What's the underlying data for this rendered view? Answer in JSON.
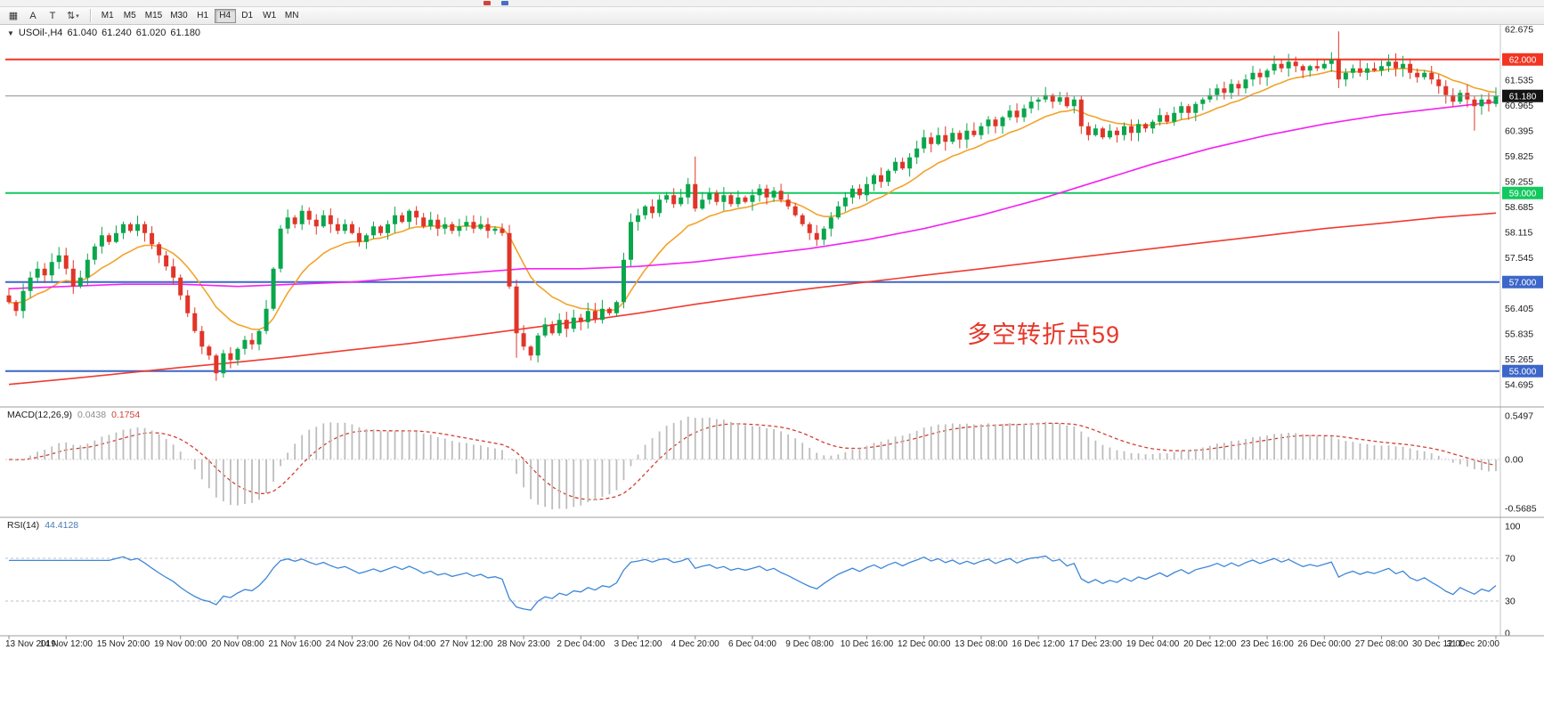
{
  "toolbar": {
    "icons": [
      {
        "name": "market-grid-icon",
        "glyph": "▦"
      },
      {
        "name": "cursor-a-icon",
        "glyph": "A"
      },
      {
        "name": "text-tool-icon",
        "glyph": "T"
      },
      {
        "name": "sort-arrows-icon",
        "glyph": "⇅",
        "caret": "▾"
      }
    ],
    "timeframes": [
      {
        "label": "M1",
        "active": false
      },
      {
        "label": "M5",
        "active": false
      },
      {
        "label": "M15",
        "active": false
      },
      {
        "label": "M30",
        "active": false
      },
      {
        "label": "H1",
        "active": false
      },
      {
        "label": "H4",
        "active": true
      },
      {
        "label": "D1",
        "active": false
      },
      {
        "label": "W1",
        "active": false
      },
      {
        "label": "MN",
        "active": false
      }
    ]
  },
  "chart_header": {
    "dropdown_glyph": "▼",
    "symbol": "USOil-,H4",
    "open": "61.040",
    "high": "61.240",
    "low": "61.020",
    "close": "61.180"
  },
  "annotation": {
    "text": "多空转折点59",
    "color": "#e8372a"
  },
  "indicator_labels": {
    "macd_name": "MACD(12,26,9)",
    "macd_main": "0.0438",
    "macd_signal": "0.1754",
    "rsi_name": "RSI(14)",
    "rsi_value": "44.4128"
  },
  "chart_data": [
    {
      "type": "candlestick",
      "symbol": "USOil",
      "timeframe": "H4",
      "up_color": "#0aa64c",
      "down_color": "#e03528",
      "first_open": 56.7,
      "closes": [
        56.55,
        56.35,
        56.8,
        57.1,
        57.3,
        57.15,
        57.45,
        57.6,
        57.3,
        56.9,
        57.1,
        57.5,
        57.8,
        58.05,
        57.9,
        58.1,
        58.3,
        58.15,
        58.3,
        58.1,
        57.85,
        57.6,
        57.35,
        57.1,
        56.7,
        56.3,
        55.9,
        55.55,
        55.35,
        54.95,
        55.4,
        55.25,
        55.5,
        55.7,
        55.6,
        55.9,
        56.4,
        57.3,
        58.2,
        58.45,
        58.3,
        58.6,
        58.4,
        58.25,
        58.5,
        58.3,
        58.15,
        58.3,
        58.1,
        57.9,
        58.05,
        58.25,
        58.1,
        58.3,
        58.5,
        58.35,
        58.6,
        58.45,
        58.25,
        58.4,
        58.2,
        58.3,
        58.15,
        58.25,
        58.35,
        58.2,
        58.3,
        58.15,
        58.2,
        58.1,
        56.9,
        55.85,
        55.55,
        55.35,
        55.8,
        56.05,
        55.85,
        56.15,
        55.95,
        56.2,
        56.1,
        56.35,
        56.15,
        56.4,
        56.3,
        56.55,
        57.5,
        58.35,
        58.5,
        58.7,
        58.55,
        58.85,
        58.95,
        58.75,
        58.9,
        59.2,
        58.65,
        58.85,
        59.0,
        58.8,
        58.95,
        58.75,
        58.9,
        58.8,
        58.95,
        59.1,
        58.9,
        59.05,
        58.85,
        58.7,
        58.5,
        58.3,
        58.1,
        57.95,
        58.2,
        58.45,
        58.7,
        58.9,
        59.1,
        58.95,
        59.2,
        59.4,
        59.25,
        59.5,
        59.7,
        59.55,
        59.8,
        60.0,
        60.25,
        60.1,
        60.3,
        60.15,
        60.35,
        60.2,
        60.4,
        60.3,
        60.5,
        60.65,
        60.5,
        60.7,
        60.85,
        60.7,
        60.9,
        61.05,
        61.1,
        61.2,
        61.05,
        61.15,
        60.95,
        61.1,
        60.5,
        60.3,
        60.45,
        60.25,
        60.4,
        60.3,
        60.5,
        60.35,
        60.55,
        60.45,
        60.6,
        60.75,
        60.6,
        60.8,
        60.95,
        60.8,
        61.0,
        61.1,
        61.2,
        61.35,
        61.25,
        61.45,
        61.35,
        61.55,
        61.7,
        61.6,
        61.75,
        61.9,
        61.8,
        61.95,
        61.85,
        61.75,
        61.85,
        61.8,
        61.9,
        62.0,
        61.55,
        61.7,
        61.8,
        61.7,
        61.8,
        61.75,
        61.85,
        61.95,
        61.8,
        61.9,
        61.7,
        61.6,
        61.7,
        61.55,
        61.4,
        61.2,
        61.05,
        61.25,
        61.1,
        60.95,
        61.1,
        61.0,
        61.18
      ],
      "wick_overrides": {
        "29": {
          "low": 54.78
        },
        "71": {
          "low": 55.3
        },
        "96": {
          "high": 59.82
        },
        "186": {
          "high": 62.63
        },
        "205": {
          "low": 60.4
        }
      },
      "moving_averages": [
        {
          "name": "fast-ma",
          "color": "#f2a32b",
          "method": "ema",
          "period": 13
        },
        {
          "name": "mid-ma",
          "color": "#f322f3",
          "waypoints": [
            56.85,
            56.9,
            56.95,
            56.95,
            56.9,
            56.95,
            57.0,
            57.1,
            57.2,
            57.3,
            57.3,
            57.35,
            57.45,
            57.6,
            57.75,
            57.95,
            58.2,
            58.5,
            58.85,
            59.25,
            59.65,
            60.0,
            60.3,
            60.55,
            60.75,
            60.9,
            61.05
          ]
        },
        {
          "name": "slow-ma",
          "color": "#f03b30",
          "waypoints": [
            54.7,
            54.82,
            54.95,
            55.08,
            55.2,
            55.33,
            55.48,
            55.62,
            55.78,
            55.95,
            56.12,
            56.3,
            56.5,
            56.68,
            56.85,
            57.0,
            57.15,
            57.3,
            57.45,
            57.6,
            57.75,
            57.9,
            58.05,
            58.2,
            58.32,
            58.45,
            58.55
          ]
        }
      ],
      "hlines": [
        {
          "price": 62.0,
          "label": "62.000",
          "color": "#f23523"
        },
        {
          "price": 59.0,
          "label": "59.000",
          "color": "#12c95f"
        },
        {
          "price": 57.0,
          "label": "57.000",
          "color": "#3c66c9"
        },
        {
          "price": 55.0,
          "label": "55.000",
          "color": "#3c66c9"
        }
      ],
      "current_price": {
        "value": 61.18,
        "label": "61.180",
        "badge_bg": "#141414",
        "line_color": "#8e8e8e"
      },
      "price_ticks": [
        62.675,
        61.535,
        60.965,
        60.395,
        59.825,
        59.255,
        58.685,
        58.115,
        57.545,
        56.405,
        55.835,
        55.265,
        54.695
      ],
      "time_labels": [
        "13 Nov 2019",
        "14 Nov 12:00",
        "15 Nov 20:00",
        "19 Nov 00:00",
        "20 Nov 08:00",
        "21 Nov 16:00",
        "24 Nov 23:00",
        "26 Nov 04:00",
        "27 Nov 12:00",
        "28 Nov 23:00",
        "2 Dec 04:00",
        "3 Dec 12:00",
        "4 Dec 20:00",
        "6 Dec 04:00",
        "9 Dec 08:00",
        "10 Dec 16:00",
        "12 Dec 00:00",
        "13 Dec 08:00",
        "16 Dec 12:00",
        "17 Dec 23:00",
        "19 Dec 04:00",
        "20 Dec 12:00",
        "23 Dec 16:00",
        "26 Dec 00:00",
        "27 Dec 08:00",
        "30 Dec 12:00",
        "31 Dec 20:00"
      ]
    },
    {
      "type": "bar",
      "name": "MACD",
      "params": [
        12,
        26,
        9
      ],
      "axis_labels": [
        "0.5497",
        "0.00",
        "-0.5685"
      ],
      "hist_color": "#bdbdbd",
      "signal_color": "#d23f32"
    },
    {
      "type": "line",
      "name": "RSI",
      "period": 14,
      "levels": [
        70,
        30
      ],
      "axis_labels": [
        "100",
        "70",
        "30",
        "0"
      ],
      "line_color": "#3d87d8"
    }
  ]
}
